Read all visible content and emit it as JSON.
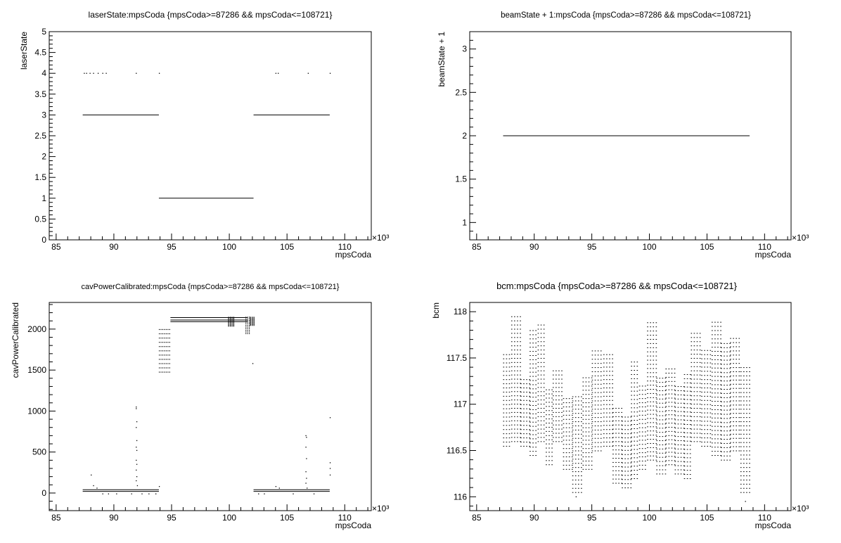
{
  "chart_data": [
    {
      "type": "scatter",
      "title": "laserState:mpsCoda {mpsCoda>=87286 && mpsCoda<=108721}",
      "xlabel": "mpsCoda",
      "ylabel": "laserState",
      "x_multiplier": "×10³",
      "xlim": [
        84.4,
        112.3
      ],
      "ylim": [
        0,
        5
      ],
      "x_ticks": [
        "85",
        "90",
        "95",
        "100",
        "105",
        "110"
      ],
      "y_ticks": [
        "0",
        "0.5",
        "1",
        "1.5",
        "2",
        "2.5",
        "3",
        "3.5",
        "4",
        "4.5",
        "5"
      ],
      "segments": [
        {
          "x0": 87.3,
          "x1": 93.9,
          "y": 3
        },
        {
          "x0": 93.9,
          "x1": 102.1,
          "y": 1
        },
        {
          "x0": 102.1,
          "x1": 108.7,
          "y": 3
        }
      ],
      "points": [
        {
          "x": 87.4,
          "y": 4
        },
        {
          "x": 87.6,
          "y": 4
        },
        {
          "x": 87.9,
          "y": 4
        },
        {
          "x": 88.2,
          "y": 4
        },
        {
          "x": 88.6,
          "y": 4
        },
        {
          "x": 89.0,
          "y": 4
        },
        {
          "x": 89.3,
          "y": 4
        },
        {
          "x": 91.9,
          "y": 4
        },
        {
          "x": 93.9,
          "y": 4
        },
        {
          "x": 104.0,
          "y": 4
        },
        {
          "x": 104.2,
          "y": 4
        },
        {
          "x": 106.8,
          "y": 4
        },
        {
          "x": 108.7,
          "y": 4
        }
      ]
    },
    {
      "type": "line",
      "title": "beamState + 1:mpsCoda {mpsCoda>=87286 && mpsCoda<=108721}",
      "xlabel": "mpsCoda",
      "ylabel": "beamState + 1",
      "x_multiplier": "×10³",
      "xlim": [
        84.4,
        112.3
      ],
      "ylim": [
        0.8,
        3.2
      ],
      "x_ticks": [
        "85",
        "90",
        "95",
        "100",
        "105",
        "110"
      ],
      "y_ticks": [
        "1",
        "1.5",
        "2",
        "2.5",
        "3"
      ],
      "segments": [
        {
          "x0": 87.3,
          "x1": 108.7,
          "y": 2
        }
      ],
      "points": []
    },
    {
      "type": "scatter",
      "title": "cavPowerCalibrated:mpsCoda {mpsCoda>=87286 && mpsCoda<=108721}",
      "xlabel": "mpsCoda",
      "ylabel": "cavPowerCalibrated",
      "x_multiplier": "×10³",
      "xlim": [
        84.4,
        112.3
      ],
      "ylim": [
        -215,
        2325
      ],
      "x_ticks": [
        "85",
        "90",
        "95",
        "100",
        "105",
        "110"
      ],
      "y_ticks": [
        "0",
        "500",
        "1000",
        "1500",
        "2000"
      ],
      "segments": [
        {
          "x0": 87.3,
          "x1": 93.9,
          "y": 40
        },
        {
          "x0": 87.3,
          "x1": 93.9,
          "y": 20
        },
        {
          "x0": 94.9,
          "x1": 101.6,
          "y": 2140
        },
        {
          "x0": 94.9,
          "x1": 101.6,
          "y": 2110
        },
        {
          "x0": 94.9,
          "x1": 101.6,
          "y": 2090
        },
        {
          "x0": 102.1,
          "x1": 108.7,
          "y": 40
        },
        {
          "x0": 102.1,
          "x1": 108.7,
          "y": 20
        }
      ],
      "bands": [
        {
          "x0": 93.9,
          "x1": 94.9,
          "ymin": 1480,
          "ymax": 2000
        },
        {
          "x0": 99.9,
          "x1": 100.4,
          "ymin": 2040,
          "ymax": 2150
        },
        {
          "x0": 101.4,
          "x1": 101.8,
          "ymin": 1950,
          "ymax": 2150
        },
        {
          "x0": 101.8,
          "x1": 102.1,
          "ymin": 2050,
          "ymax": 2150
        }
      ],
      "points": [
        {
          "x": 88.0,
          "y": 220
        },
        {
          "x": 88.2,
          "y": 90
        },
        {
          "x": 88.5,
          "y": 60
        },
        {
          "x": 89.0,
          "y": -10
        },
        {
          "x": 89.5,
          "y": -10
        },
        {
          "x": 90.2,
          "y": -10
        },
        {
          "x": 91.5,
          "y": -10
        },
        {
          "x": 91.9,
          "y": 1050
        },
        {
          "x": 91.9,
          "y": 1030
        },
        {
          "x": 91.95,
          "y": 870
        },
        {
          "x": 91.9,
          "y": 800
        },
        {
          "x": 91.95,
          "y": 640
        },
        {
          "x": 91.9,
          "y": 560
        },
        {
          "x": 91.95,
          "y": 520
        },
        {
          "x": 91.9,
          "y": 400
        },
        {
          "x": 91.95,
          "y": 350
        },
        {
          "x": 91.9,
          "y": 280
        },
        {
          "x": 91.95,
          "y": 200
        },
        {
          "x": 91.9,
          "y": 150
        },
        {
          "x": 92.0,
          "y": 90
        },
        {
          "x": 92.4,
          "y": -10
        },
        {
          "x": 93.0,
          "y": -10
        },
        {
          "x": 93.6,
          "y": -10
        },
        {
          "x": 93.9,
          "y": 80
        },
        {
          "x": 102.0,
          "y": 1580
        },
        {
          "x": 102.5,
          "y": -10
        },
        {
          "x": 103.0,
          "y": -10
        },
        {
          "x": 104.0,
          "y": 80
        },
        {
          "x": 104.3,
          "y": 60
        },
        {
          "x": 105.5,
          "y": -10
        },
        {
          "x": 106.6,
          "y": 700
        },
        {
          "x": 106.65,
          "y": 680
        },
        {
          "x": 106.6,
          "y": 560
        },
        {
          "x": 106.65,
          "y": 420
        },
        {
          "x": 106.6,
          "y": 260
        },
        {
          "x": 106.65,
          "y": 180
        },
        {
          "x": 106.6,
          "y": 120
        },
        {
          "x": 106.7,
          "y": 60
        },
        {
          "x": 107.3,
          "y": -10
        },
        {
          "x": 108.7,
          "y": 920
        },
        {
          "x": 108.7,
          "y": 370
        },
        {
          "x": 108.7,
          "y": 300
        },
        {
          "x": 108.7,
          "y": 220
        }
      ]
    },
    {
      "type": "scatter",
      "title": "bcm:mpsCoda {mpsCoda>=87286 && mpsCoda<=108721}",
      "xlabel": "mpsCoda",
      "ylabel": "bcm",
      "x_multiplier": "×10³",
      "xlim": [
        84.4,
        112.3
      ],
      "ylim": [
        115.85,
        118.1
      ],
      "x_ticks": [
        "85",
        "90",
        "95",
        "100",
        "105",
        "110"
      ],
      "y_ticks": [
        "116",
        "116.5",
        "117",
        "117.5",
        "118"
      ],
      "column_step": 0.25,
      "column_row_step": 0.045,
      "column_ranges": [
        {
          "x0": 87.3,
          "x1": 88.0,
          "ymin": 116.55,
          "ymax": 117.55
        },
        {
          "x0": 88.0,
          "x1": 88.8,
          "ymin": 116.6,
          "ymax": 117.95
        },
        {
          "x0": 88.8,
          "x1": 89.6,
          "ymin": 116.55,
          "ymax": 117.3
        },
        {
          "x0": 89.6,
          "x1": 90.3,
          "ymin": 116.45,
          "ymax": 117.8
        },
        {
          "x0": 90.3,
          "x1": 91.0,
          "ymin": 116.6,
          "ymax": 117.9
        },
        {
          "x0": 91.0,
          "x1": 91.6,
          "ymin": 116.35,
          "ymax": 117.2
        },
        {
          "x0": 91.6,
          "x1": 92.5,
          "ymin": 116.6,
          "ymax": 117.4
        },
        {
          "x0": 92.5,
          "x1": 93.3,
          "ymin": 116.3,
          "ymax": 117.1
        },
        {
          "x0": 93.3,
          "x1": 94.2,
          "ymin": 116.05,
          "ymax": 117.1
        },
        {
          "x0": 94.2,
          "x1": 95.0,
          "ymin": 116.3,
          "ymax": 117.3
        },
        {
          "x0": 95.0,
          "x1": 96.0,
          "ymin": 116.5,
          "ymax": 117.6
        },
        {
          "x0": 96.0,
          "x1": 96.8,
          "ymin": 116.55,
          "ymax": 117.55
        },
        {
          "x0": 96.8,
          "x1": 97.6,
          "ymin": 116.15,
          "ymax": 117.0
        },
        {
          "x0": 97.6,
          "x1": 98.4,
          "ymin": 116.1,
          "ymax": 116.9
        },
        {
          "x0": 98.4,
          "x1": 99.1,
          "ymin": 116.2,
          "ymax": 117.5
        },
        {
          "x0": 99.1,
          "x1": 99.8,
          "ymin": 116.3,
          "ymax": 117.2
        },
        {
          "x0": 99.8,
          "x1": 100.6,
          "ymin": 116.4,
          "ymax": 117.9
        },
        {
          "x0": 100.6,
          "x1": 101.4,
          "ymin": 116.25,
          "ymax": 117.3
        },
        {
          "x0": 101.4,
          "x1": 102.2,
          "ymin": 116.35,
          "ymax": 117.4
        },
        {
          "x0": 102.2,
          "x1": 103.0,
          "ymin": 116.25,
          "ymax": 117.2
        },
        {
          "x0": 103.0,
          "x1": 103.6,
          "ymin": 116.2,
          "ymax": 117.35
        },
        {
          "x0": 103.6,
          "x1": 104.5,
          "ymin": 116.6,
          "ymax": 117.8
        },
        {
          "x0": 104.5,
          "x1": 105.4,
          "ymin": 116.55,
          "ymax": 117.6
        },
        {
          "x0": 105.4,
          "x1": 106.2,
          "ymin": 116.45,
          "ymax": 117.9
        },
        {
          "x0": 106.2,
          "x1": 107.0,
          "ymin": 116.4,
          "ymax": 117.7
        },
        {
          "x0": 107.0,
          "x1": 107.9,
          "ymin": 116.5,
          "ymax": 117.75
        },
        {
          "x0": 107.9,
          "x1": 108.7,
          "ymin": 116.05,
          "ymax": 117.4
        }
      ],
      "points": [
        {
          "x": 108.3,
          "y": 115.95
        },
        {
          "x": 93.6,
          "y": 116.0
        }
      ]
    }
  ]
}
